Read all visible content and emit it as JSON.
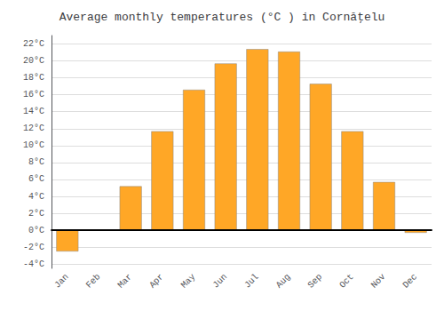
{
  "chart_data": {
    "type": "bar",
    "title": "Average monthly temperatures (°C ) in Cornăţelu",
    "categories": [
      "Jan",
      "Feb",
      "Mar",
      "Apr",
      "May",
      "Jun",
      "Jul",
      "Aug",
      "Sep",
      "Oct",
      "Nov",
      "Dec"
    ],
    "values": [
      -2.5,
      0,
      5.2,
      11.7,
      16.6,
      19.7,
      21.4,
      21.1,
      17.3,
      11.7,
      5.7,
      -0.3
    ],
    "color": "#FFA726",
    "ylim": [
      -4.5,
      23
    ],
    "yticks": [
      {
        "value": -4,
        "label": "-4°C"
      },
      {
        "value": -2,
        "label": "-2°C"
      },
      {
        "value": 0,
        "label": "0°C"
      },
      {
        "value": 2,
        "label": "2°C"
      },
      {
        "value": 4,
        "label": "4°C"
      },
      {
        "value": 6,
        "label": "6°C"
      },
      {
        "value": 8,
        "label": "8°C"
      },
      {
        "value": 10,
        "label": "10°C"
      },
      {
        "value": 12,
        "label": "12°C"
      },
      {
        "value": 14,
        "label": "14°C"
      },
      {
        "value": 16,
        "label": "16°C"
      },
      {
        "value": 18,
        "label": "18°C"
      },
      {
        "value": 20,
        "label": "20°C"
      },
      {
        "value": 22,
        "label": "22°C"
      }
    ],
    "grid": true
  }
}
